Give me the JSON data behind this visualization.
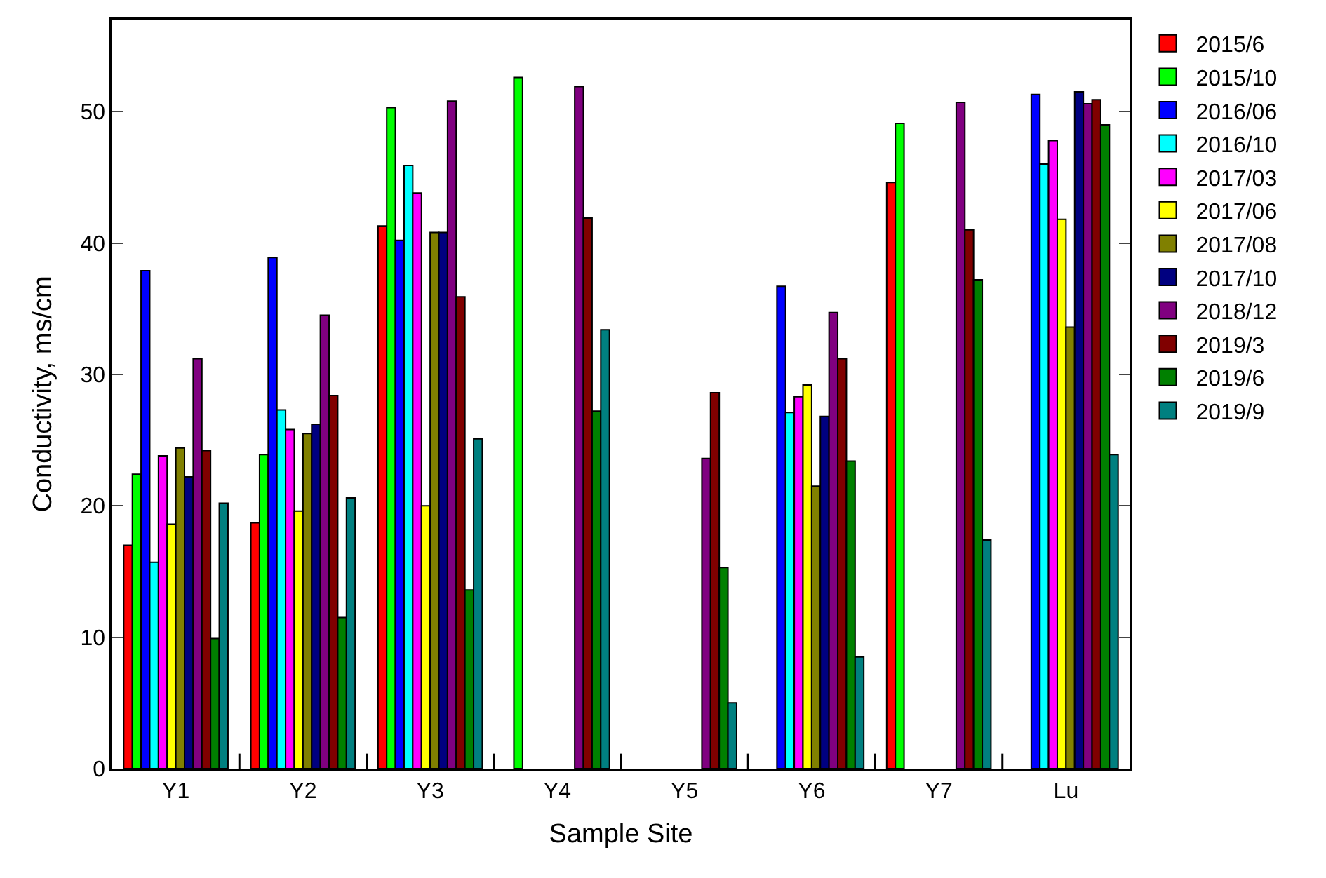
{
  "chart_data": {
    "type": "bar",
    "xlabel": "Sample Site",
    "ylabel": "Conductivity, ms/cm",
    "categories": [
      "Y1",
      "Y2",
      "Y3",
      "Y4",
      "Y5",
      "Y6",
      "Y7",
      "Lu"
    ],
    "ylim": [
      0,
      57
    ],
    "yticks": [
      0,
      10,
      20,
      30,
      40,
      50
    ],
    "legend": "top right",
    "series": [
      {
        "name": "2015/6",
        "color": "#ff0000",
        "values": [
          17.0,
          18.7,
          41.3,
          null,
          null,
          null,
          44.6,
          null
        ]
      },
      {
        "name": "2015/10",
        "color": "#00ff00",
        "values": [
          22.4,
          23.9,
          50.3,
          52.6,
          null,
          null,
          49.1,
          null
        ]
      },
      {
        "name": "2016/06",
        "color": "#0000ff",
        "values": [
          37.9,
          38.9,
          40.2,
          null,
          null,
          36.7,
          null,
          51.3
        ]
      },
      {
        "name": "2016/10",
        "color": "#00ffff",
        "values": [
          15.7,
          27.3,
          45.9,
          null,
          null,
          27.1,
          null,
          46.0
        ]
      },
      {
        "name": "2017/03",
        "color": "#ff00ff",
        "values": [
          23.8,
          25.8,
          43.8,
          null,
          null,
          28.3,
          null,
          47.8
        ]
      },
      {
        "name": "2017/06",
        "color": "#ffff00",
        "values": [
          18.6,
          19.6,
          20.0,
          null,
          null,
          29.2,
          null,
          41.8
        ]
      },
      {
        "name": "2017/08",
        "color": "#808000",
        "values": [
          24.4,
          25.5,
          40.8,
          null,
          null,
          21.5,
          null,
          33.6
        ]
      },
      {
        "name": "2017/10",
        "color": "#000080",
        "values": [
          22.2,
          26.2,
          40.8,
          null,
          null,
          26.8,
          null,
          51.5
        ]
      },
      {
        "name": "2018/12",
        "color": "#800080",
        "values": [
          31.2,
          34.5,
          50.8,
          51.9,
          23.6,
          34.7,
          50.7,
          50.6
        ]
      },
      {
        "name": "2019/3",
        "color": "#800000",
        "values": [
          24.2,
          28.4,
          35.9,
          41.9,
          28.6,
          31.2,
          41.0,
          50.9
        ]
      },
      {
        "name": "2019/6",
        "color": "#008000",
        "values": [
          9.9,
          11.5,
          13.6,
          27.2,
          15.3,
          23.4,
          37.2,
          49.0
        ]
      },
      {
        "name": "2019/9",
        "color": "#008080",
        "values": [
          20.2,
          20.6,
          25.1,
          33.4,
          5.0,
          8.5,
          17.4,
          23.9
        ]
      }
    ]
  }
}
